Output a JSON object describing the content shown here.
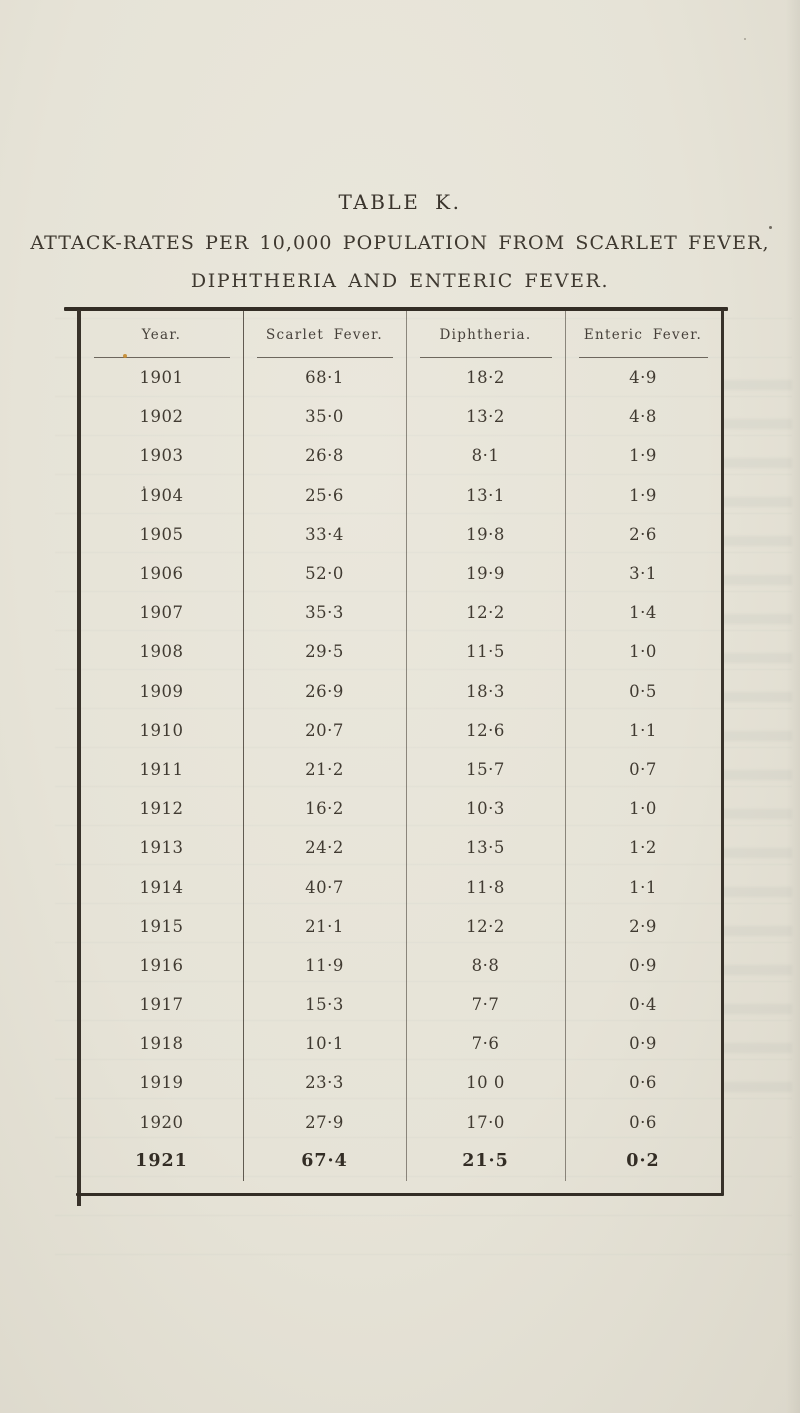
{
  "page": {
    "paper_color": "#e6e3d8",
    "ink_color": "#3e382f",
    "border_color": "#332d25"
  },
  "titles": {
    "table_label": "TABLE K.",
    "line1": "ATTACK-RATES PER 10,000 POPULATION FROM SCARLET FEVER,",
    "line2": "DIPHTHERIA AND ENTERIC FEVER."
  },
  "table": {
    "columns": [
      "Year.",
      "Scarlet Fever.",
      "Diphtheria.",
      "Enteric Fever."
    ],
    "rows": [
      {
        "year": "1901",
        "scarlet": "68·1",
        "diphtheria": "18·2",
        "enteric": "4·9"
      },
      {
        "year": "1902",
        "scarlet": "35·0",
        "diphtheria": "13·2",
        "enteric": "4·8"
      },
      {
        "year": "1903",
        "scarlet": "26·8",
        "diphtheria": "8·1",
        "enteric": "1·9"
      },
      {
        "year": "1904",
        "scarlet": "25·6",
        "diphtheria": "13·1",
        "enteric": "1·9"
      },
      {
        "year": "1905",
        "scarlet": "33·4",
        "diphtheria": "19·8",
        "enteric": "2·6"
      },
      {
        "year": "1906",
        "scarlet": "52·0",
        "diphtheria": "19·9",
        "enteric": "3·1"
      },
      {
        "year": "1907",
        "scarlet": "35·3",
        "diphtheria": "12·2",
        "enteric": "1·4"
      },
      {
        "year": "1908",
        "scarlet": "29·5",
        "diphtheria": "11·5",
        "enteric": "1·0"
      },
      {
        "year": "1909",
        "scarlet": "26·9",
        "diphtheria": "18·3",
        "enteric": "0·5"
      },
      {
        "year": "1910",
        "scarlet": "20·7",
        "diphtheria": "12·6",
        "enteric": "1·1"
      },
      {
        "year": "1911",
        "scarlet": "21·2",
        "diphtheria": "15·7",
        "enteric": "0·7"
      },
      {
        "year": "1912",
        "scarlet": "16·2",
        "diphtheria": "10·3",
        "enteric": "1·0"
      },
      {
        "year": "1913",
        "scarlet": "24·2",
        "diphtheria": "13·5",
        "enteric": "1·2"
      },
      {
        "year": "1914",
        "scarlet": "40·7",
        "diphtheria": "11·8",
        "enteric": "1·1"
      },
      {
        "year": "1915",
        "scarlet": "21·1",
        "diphtheria": "12·2",
        "enteric": "2·9"
      },
      {
        "year": "1916",
        "scarlet": "11·9",
        "diphtheria": "8·8",
        "enteric": "0·9"
      },
      {
        "year": "1917",
        "scarlet": "15·3",
        "diphtheria": "7·7",
        "enteric": "0·4"
      },
      {
        "year": "1918",
        "scarlet": "10·1",
        "diphtheria": "7·6",
        "enteric": "0·9"
      },
      {
        "year": "1919",
        "scarlet": "23·3",
        "diphtheria": "10 0",
        "enteric": "0·6"
      },
      {
        "year": "1920",
        "scarlet": "27·9",
        "diphtheria": "17·0",
        "enteric": "0·6"
      },
      {
        "year": "1921",
        "scarlet": "67·4",
        "diphtheria": "21·5",
        "enteric": "0·2",
        "bold": true
      }
    ]
  }
}
